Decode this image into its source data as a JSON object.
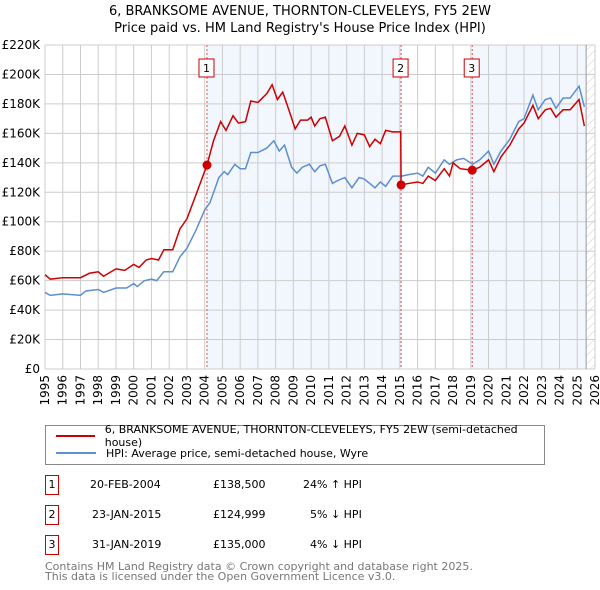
{
  "chart_data": {
    "type": "line",
    "title": "6, BRANKSOME AVENUE, THORNTON-CLEVELEYS, FY5 2EW",
    "subtitle": "Price paid vs. HM Land Registry's House Price Index (HPI)",
    "xlim": [
      1995,
      2026
    ],
    "ylim": [
      0,
      220000
    ],
    "x_ticks": [
      "1995",
      "1996",
      "1997",
      "1998",
      "1999",
      "2000",
      "2001",
      "2002",
      "2003",
      "2004",
      "2005",
      "2006",
      "2007",
      "2008",
      "2009",
      "2010",
      "2011",
      "2012",
      "2013",
      "2014",
      "2015",
      "2016",
      "2017",
      "2018",
      "2019",
      "2020",
      "2021",
      "2022",
      "2023",
      "2024",
      "2025",
      "2026"
    ],
    "y_ticks": [
      {
        "v": 0,
        "label": "£0"
      },
      {
        "v": 20000,
        "label": "£20K"
      },
      {
        "v": 40000,
        "label": "£40K"
      },
      {
        "v": 60000,
        "label": "£60K"
      },
      {
        "v": 80000,
        "label": "£80K"
      },
      {
        "v": 100000,
        "label": "£100K"
      },
      {
        "v": 120000,
        "label": "£120K"
      },
      {
        "v": 140000,
        "label": "£140K"
      },
      {
        "v": 160000,
        "label": "£160K"
      },
      {
        "v": 180000,
        "label": "£180K"
      },
      {
        "v": 200000,
        "label": "£200K"
      },
      {
        "v": 220000,
        "label": "£220K"
      }
    ],
    "grid": true,
    "shaded_ranges": [
      [
        2004.13,
        2015.07
      ],
      [
        2019.08,
        2025.5
      ]
    ],
    "hatched_from": 2025.5,
    "series": [
      {
        "name": "6, BRANKSOME AVENUE, THORNTON-CLEVELEYS, FY5 2EW (semi-detached house)",
        "color": "#cc0000",
        "x": [
          1995,
          1995.3,
          1996,
          1997,
          1997.5,
          1998,
          1998.3,
          1999,
          1999.5,
          2000,
          2000.3,
          2000.7,
          2001,
          2001.4,
          2001.7,
          2002.2,
          2002.6,
          2003,
          2003.5,
          2004.13,
          2004.5,
          2004.9,
          2005.2,
          2005.6,
          2005.9,
          2006.3,
          2006.6,
          2007,
          2007.5,
          2007.8,
          2008.1,
          2008.4,
          2008.8,
          2009.1,
          2009.4,
          2009.8,
          2010,
          2010.2,
          2010.5,
          2010.8,
          2011.2,
          2011.6,
          2011.9,
          2012.3,
          2012.6,
          2013,
          2013.3,
          2013.6,
          2013.9,
          2014.2,
          2014.6,
          2015.05,
          2015.07,
          2015.5,
          2016,
          2016.3,
          2016.6,
          2017,
          2017.5,
          2017.8,
          2018,
          2018.4,
          2019.08,
          2019.5,
          2020,
          2020.3,
          2020.7,
          2021.2,
          2021.7,
          2022,
          2022.5,
          2022.8,
          2023.2,
          2023.5,
          2023.8,
          2024.2,
          2024.6,
          2025.1,
          2025.4
        ],
        "y": [
          64,
          61,
          62,
          62,
          65,
          66,
          63,
          68,
          67,
          71,
          69,
          74,
          75,
          74,
          81,
          81,
          95,
          102,
          118,
          138.5,
          155,
          168,
          162,
          172,
          167,
          168,
          182,
          181,
          187,
          193,
          183,
          188,
          174,
          163,
          169,
          169,
          171,
          165,
          170,
          171,
          155,
          158,
          165,
          152,
          160,
          159,
          151,
          156,
          153,
          162,
          161,
          161,
          125,
          126,
          127,
          126,
          131,
          128,
          136,
          131,
          140,
          136,
          135,
          137,
          142,
          134,
          144,
          152,
          163,
          167,
          179,
          170,
          176,
          177,
          171,
          176,
          176,
          183,
          165
        ]
      },
      {
        "name": "HPI: Average price, semi-detached house, Wyre",
        "color": "#5b8fd0",
        "x": [
          1995,
          1995.3,
          1996,
          1997,
          1997.3,
          1998,
          1998.3,
          1999,
          1999.6,
          2000,
          2000.2,
          2000.6,
          2001,
          2001.3,
          2001.7,
          2002.2,
          2002.6,
          2003,
          2003.5,
          2004,
          2004.3,
          2004.8,
          2005.1,
          2005.3,
          2005.7,
          2006,
          2006.3,
          2006.6,
          2007,
          2007.5,
          2007.9,
          2008.2,
          2008.5,
          2008.9,
          2009.2,
          2009.5,
          2009.9,
          2010.2,
          2010.5,
          2010.8,
          2011.2,
          2011.5,
          2011.9,
          2012.3,
          2012.7,
          2013,
          2013.3,
          2013.6,
          2013.9,
          2014.2,
          2014.6,
          2015.1,
          2015.5,
          2016,
          2016.3,
          2016.6,
          2017,
          2017.5,
          2017.8,
          2018.2,
          2018.6,
          2019.1,
          2019.5,
          2020,
          2020.3,
          2020.7,
          2021.2,
          2021.7,
          2022,
          2022.5,
          2022.8,
          2023.2,
          2023.5,
          2023.8,
          2024.2,
          2024.6,
          2025.1,
          2025.4
        ],
        "y": [
          52,
          50,
          51,
          50,
          53,
          54,
          52,
          55,
          55,
          58,
          56,
          60,
          61,
          60,
          66,
          66,
          76,
          82,
          94,
          108,
          113,
          130,
          134,
          132,
          139,
          136,
          136,
          147,
          147,
          150,
          155,
          148,
          152,
          137,
          133,
          137,
          139,
          134,
          138,
          139,
          126,
          128,
          130,
          123,
          130,
          129,
          126,
          123,
          127,
          124,
          131,
          131,
          132,
          133,
          131,
          137,
          133,
          142,
          139,
          142,
          143,
          139,
          142,
          148,
          139,
          148,
          156,
          168,
          170,
          186,
          176,
          183,
          184,
          177,
          184,
          184,
          192,
          178
        ]
      }
    ],
    "sales": [
      {
        "id": "1",
        "date": "20-FEB-2004",
        "x": 2004.13,
        "price": "£138,500",
        "value": 138500,
        "hpi": "24% ↑ HPI"
      },
      {
        "id": "2",
        "date": "23-JAN-2015",
        "x": 2015.07,
        "price": "£124,999",
        "value": 124999,
        "hpi": "5% ↓ HPI"
      },
      {
        "id": "3",
        "date": "31-JAN-2019",
        "x": 2019.08,
        "price": "£135,000",
        "value": 135000,
        "hpi": "4% ↓ HPI"
      }
    ]
  },
  "footer": {
    "line1": "Contains HM Land Registry data © Crown copyright and database right 2025.",
    "line2": "This data is licensed under the Open Government Licence v3.0."
  }
}
